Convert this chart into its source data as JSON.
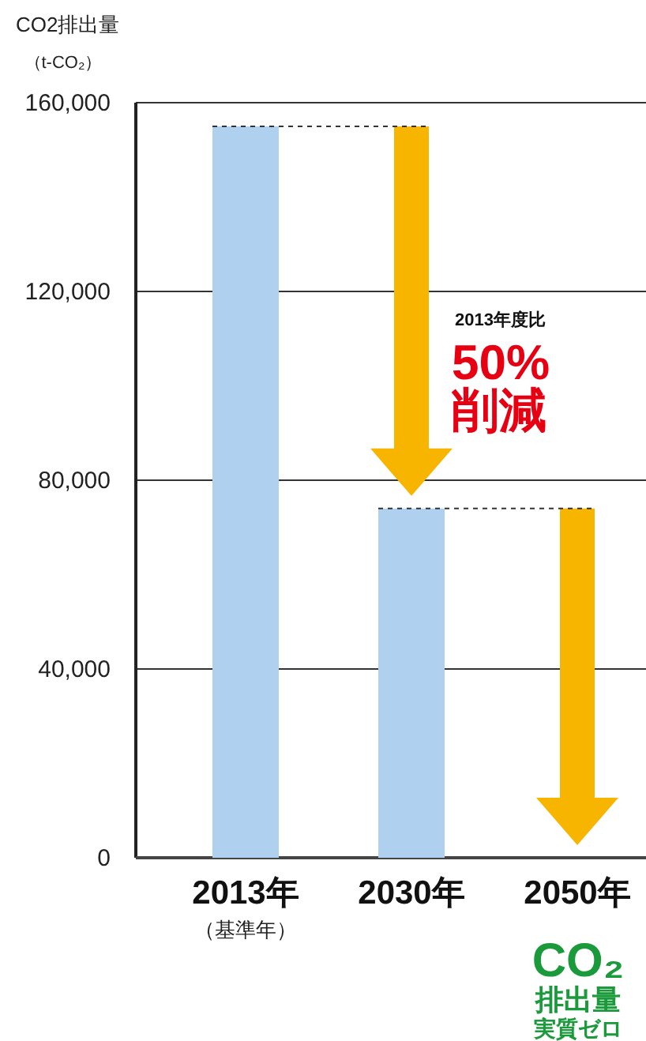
{
  "chart_data": {
    "type": "bar",
    "ylabel": "CO2排出量",
    "categories": [
      "2013年",
      "2030年",
      "2050年"
    ],
    "values": [
      155000,
      74000,
      0
    ],
    "color": "#afd0ee",
    "ylim": [
      0,
      160000
    ],
    "yticks": [
      0,
      {
        "value": 40000,
        "label": "40,000"
      },
      {
        "value": 80000,
        "label": "80,000"
      },
      {
        "value": 120000,
        "label": "120,000"
      },
      {
        "value": 160000,
        "label": "160,000"
      }
    ],
    "grid": "y",
    "ref_lines": [
      {
        "axis": "y",
        "value": 155000,
        "line_style": "dashed",
        "color": "#333333"
      },
      {
        "axis": "y",
        "value": 74000,
        "line_style": "dashed",
        "color": "#333333"
      }
    ],
    "annotations": [
      "（t-CO₂）",
      "（基準年）",
      "2013年度比",
      "50%",
      "削減",
      "CO₂",
      "排出量",
      "実質ゼロ"
    ]
  }
}
